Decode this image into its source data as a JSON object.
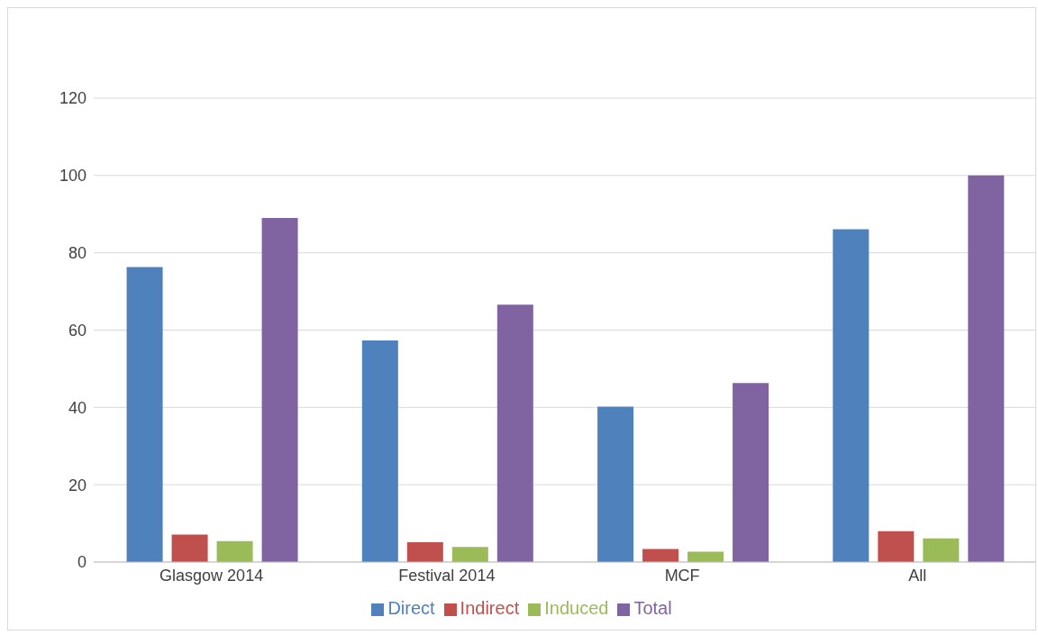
{
  "chart_data": {
    "type": "bar",
    "categories": [
      "Glasgow 2014",
      "Festival 2014",
      "MCF",
      "All"
    ],
    "series": [
      {
        "name": "Direct",
        "color": "#4f81bd",
        "values": [
          76.3,
          57.3,
          40.2,
          86.1
        ]
      },
      {
        "name": "Indirect",
        "color": "#c0504d",
        "values": [
          7.1,
          5.1,
          3.4,
          8.0
        ]
      },
      {
        "name": "Induced",
        "color": "#9bbb59",
        "values": [
          5.4,
          3.9,
          2.7,
          6.1
        ]
      },
      {
        "name": "Total",
        "color": "#8064a2",
        "values": [
          89.0,
          66.6,
          46.3,
          100
        ]
      }
    ],
    "ylim": [
      0,
      120
    ],
    "yticks": [
      0,
      20,
      40,
      60,
      80,
      100,
      120
    ],
    "grid": "y",
    "legend": "bottom"
  }
}
